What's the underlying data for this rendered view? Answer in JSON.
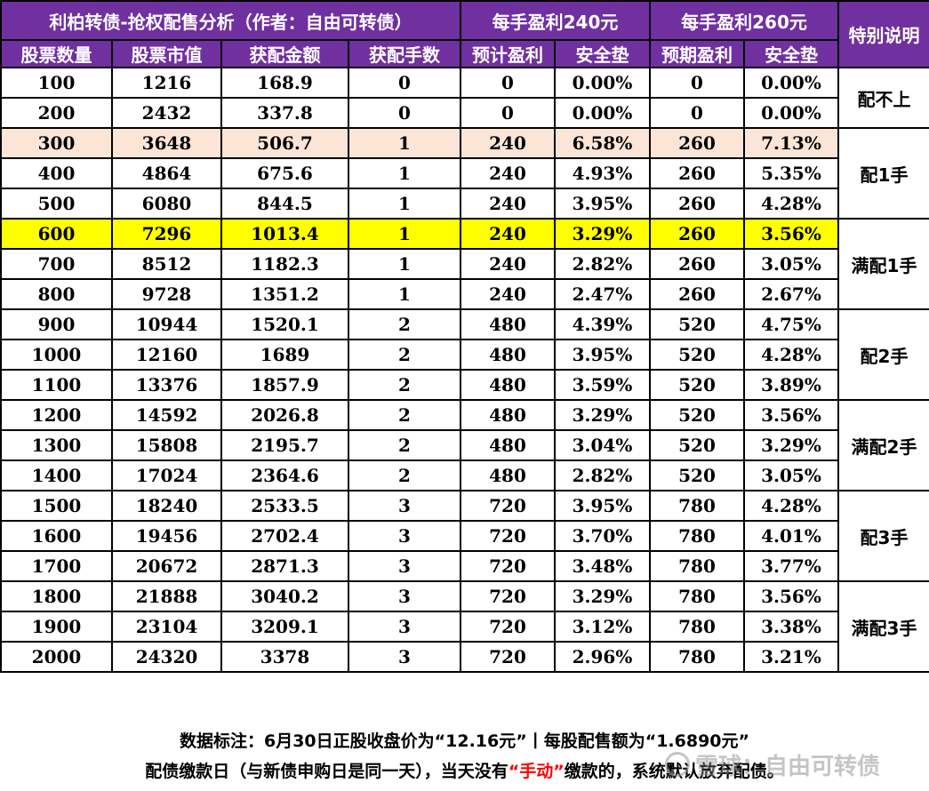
{
  "colors": {
    "header_bg": "#7030a0",
    "header_text": "#ffffff",
    "peach_row": "#fbe5d6",
    "yellow_row": "#ffff00",
    "emphasis_red": "#ff0000"
  },
  "header": {
    "title": "利柏转债-抢权配售分析（作者：自由可转债）",
    "group_240": "每手盈利240元",
    "group_260": "每手盈利260元",
    "special_note": "特别说明"
  },
  "columns": [
    "股票数量",
    "股票市值",
    "获配金额",
    "获配手数",
    "预计盈利",
    "安全垫",
    "预期盈利",
    "安全垫"
  ],
  "rows": [
    [
      "100",
      "1216",
      "168.9",
      "0",
      "0",
      "0.00%",
      "0",
      "0.00%"
    ],
    [
      "200",
      "2432",
      "337.8",
      "0",
      "0",
      "0.00%",
      "0",
      "0.00%"
    ],
    [
      "300",
      "3648",
      "506.7",
      "1",
      "240",
      "6.58%",
      "260",
      "7.13%"
    ],
    [
      "400",
      "4864",
      "675.6",
      "1",
      "240",
      "4.93%",
      "260",
      "5.35%"
    ],
    [
      "500",
      "6080",
      "844.5",
      "1",
      "240",
      "3.95%",
      "260",
      "4.28%"
    ],
    [
      "600",
      "7296",
      "1013.4",
      "1",
      "240",
      "3.29%",
      "260",
      "3.56%"
    ],
    [
      "700",
      "8512",
      "1182.3",
      "1",
      "240",
      "2.82%",
      "260",
      "3.05%"
    ],
    [
      "800",
      "9728",
      "1351.2",
      "1",
      "240",
      "2.47%",
      "260",
      "2.67%"
    ],
    [
      "900",
      "10944",
      "1520.1",
      "2",
      "480",
      "4.39%",
      "520",
      "4.75%"
    ],
    [
      "1000",
      "12160",
      "1689",
      "2",
      "480",
      "3.95%",
      "520",
      "4.28%"
    ],
    [
      "1100",
      "13376",
      "1857.9",
      "2",
      "480",
      "3.59%",
      "520",
      "3.89%"
    ],
    [
      "1200",
      "14592",
      "2026.8",
      "2",
      "480",
      "3.29%",
      "520",
      "3.56%"
    ],
    [
      "1300",
      "15808",
      "2195.7",
      "2",
      "480",
      "3.04%",
      "520",
      "3.29%"
    ],
    [
      "1400",
      "17024",
      "2364.6",
      "2",
      "480",
      "2.82%",
      "520",
      "3.05%"
    ],
    [
      "1500",
      "18240",
      "2533.5",
      "3",
      "720",
      "3.95%",
      "780",
      "4.28%"
    ],
    [
      "1600",
      "19456",
      "2702.4",
      "3",
      "720",
      "3.70%",
      "780",
      "4.01%"
    ],
    [
      "1700",
      "20672",
      "2871.3",
      "3",
      "720",
      "3.48%",
      "780",
      "3.77%"
    ],
    [
      "1800",
      "21888",
      "3040.2",
      "3",
      "720",
      "3.29%",
      "780",
      "3.56%"
    ],
    [
      "1900",
      "23104",
      "3209.1",
      "3",
      "720",
      "3.12%",
      "780",
      "3.38%"
    ],
    [
      "2000",
      "24320",
      "3378",
      "3",
      "720",
      "2.96%",
      "780",
      "3.21%"
    ]
  ],
  "notes": [
    "配不上",
    "配1手",
    "满配1手",
    "配2手",
    "满配2手",
    "配3手",
    "满配3手"
  ],
  "footer": {
    "line1": "数据标注：6月30日正股收盘价为“12.16元”丨每股配售额为“1.6890元”",
    "line2_before": "配债缴款日（与新债申购日是同一天），当天没有",
    "line2_emphasis": "“手动”",
    "line2_after": "缴款的，系统默认放弃配债。"
  },
  "watermark": {
    "text": "雪球：自由可转债",
    "icon": "snowball-logo-icon"
  }
}
